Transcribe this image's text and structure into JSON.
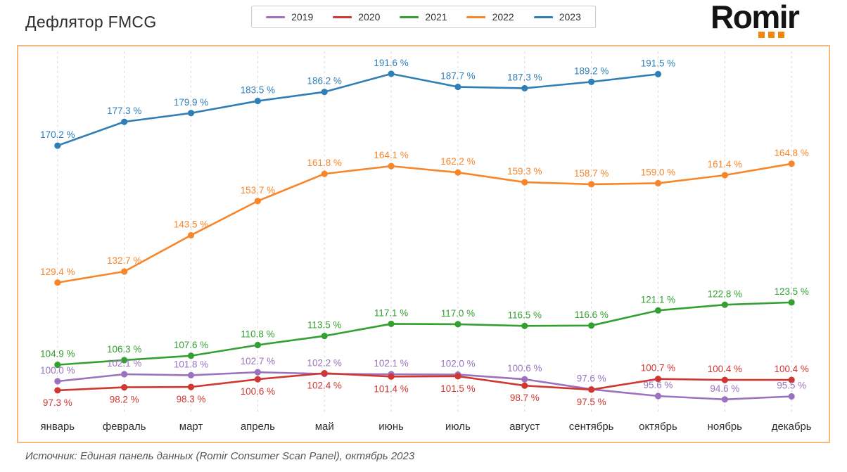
{
  "header": {
    "title": "Дефлятор FMCG",
    "logo_text": "Romir"
  },
  "footer": {
    "source": "Источник: Единая панель данных (Romir Consumer Scan Panel), октябрь 2023"
  },
  "colors": {
    "accent_orange": "#f5860d",
    "chart_border": "#f5b87c",
    "gridline": "#d8d8d8",
    "axis_text": "#2f2f2f"
  },
  "chart_data": {
    "type": "line",
    "title": "Дефлятор FMCG",
    "unit": "%",
    "categories": [
      "январь",
      "февраль",
      "март",
      "апрель",
      "май",
      "июнь",
      "июль",
      "август",
      "сентябрь",
      "октябрь",
      "ноябрь",
      "декабрь"
    ],
    "series": [
      {
        "name": "2019",
        "color": "#9b72c0",
        "values": [
          100.0,
          102.1,
          101.8,
          102.7,
          102.2,
          102.1,
          102.0,
          100.6,
          97.6,
          95.6,
          94.6,
          95.5
        ]
      },
      {
        "name": "2020",
        "color": "#cf3731",
        "values": [
          97.3,
          98.2,
          98.3,
          100.6,
          102.4,
          101.4,
          101.5,
          98.7,
          97.5,
          100.7,
          100.4,
          100.4
        ],
        "label_positions": [
          "below",
          "below",
          "below",
          "below",
          "below",
          "below",
          "below",
          "below",
          "below",
          "above",
          "above",
          "above"
        ]
      },
      {
        "name": "2021",
        "color": "#34a032",
        "values": [
          104.9,
          106.3,
          107.6,
          110.8,
          113.5,
          117.1,
          117.0,
          116.5,
          116.6,
          121.1,
          122.8,
          123.5
        ]
      },
      {
        "name": "2022",
        "color": "#f7862b",
        "values": [
          129.4,
          132.7,
          143.5,
          153.7,
          161.8,
          164.1,
          162.2,
          159.3,
          158.7,
          159.0,
          161.4,
          164.8
        ]
      },
      {
        "name": "2023",
        "color": "#2f7eb6",
        "values": [
          170.2,
          177.3,
          179.9,
          183.5,
          186.2,
          191.6,
          187.7,
          187.3,
          189.2,
          191.5
        ]
      }
    ],
    "ylim": [
      92,
      196
    ],
    "grid": "vertical-dashed",
    "legend_position": "top-center",
    "value_suffix": " %"
  }
}
